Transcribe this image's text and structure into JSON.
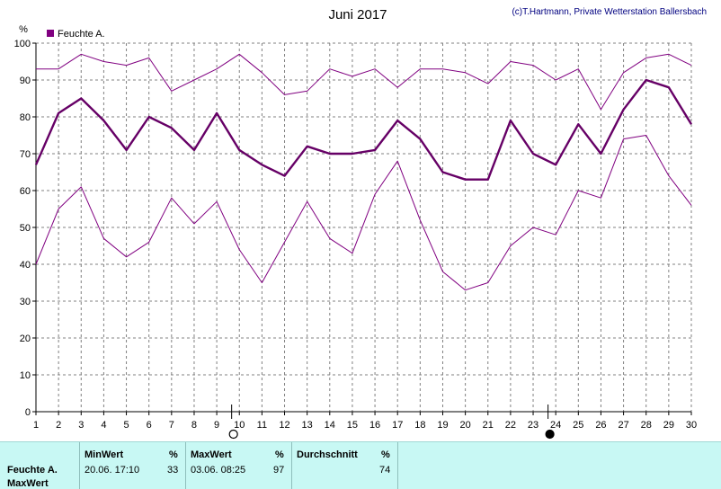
{
  "header": {
    "title": "Juni 2017",
    "credit": "(c)T.Hartmann, Private Wetterstation Ballersbach"
  },
  "chart_data": {
    "type": "line",
    "ylabel": "%",
    "ylim": [
      0,
      100
    ],
    "yticks": [
      0,
      10,
      20,
      30,
      40,
      50,
      60,
      70,
      80,
      90,
      100
    ],
    "categories": [
      "1",
      "2",
      "3",
      "4",
      "5",
      "6",
      "7",
      "8",
      "9",
      "10",
      "11",
      "12",
      "13",
      "14",
      "15",
      "16",
      "17",
      "18",
      "19",
      "20",
      "21",
      "22",
      "23",
      "24",
      "25",
      "26",
      "27",
      "28",
      "29",
      "30"
    ],
    "legend": "Feuchte A.",
    "grid": true,
    "series": [
      {
        "role": "max",
        "color": "#800080",
        "values": [
          93,
          93,
          97,
          95,
          94,
          96,
          87,
          90,
          93,
          97,
          92,
          86,
          87,
          93,
          91,
          93,
          88,
          93,
          93,
          92,
          89,
          95,
          94,
          90,
          93,
          82,
          92,
          96,
          97,
          94
        ]
      },
      {
        "role": "avg",
        "color": "#660066",
        "values": [
          67,
          81,
          85,
          79,
          71,
          80,
          77,
          71,
          81,
          71,
          67,
          64,
          72,
          70,
          70,
          71,
          79,
          74,
          65,
          63,
          63,
          79,
          70,
          67,
          78,
          70,
          82,
          90,
          88,
          78
        ]
      },
      {
        "role": "min",
        "color": "#800080",
        "values": [
          40,
          55,
          61,
          47,
          42,
          46,
          58,
          51,
          57,
          44,
          35,
          46,
          57,
          47,
          43,
          59,
          68,
          52,
          38,
          33,
          35,
          45,
          50,
          48,
          60,
          58,
          74,
          75,
          64,
          56
        ]
      }
    ],
    "markers": [
      {
        "day": 10,
        "symbol": "full-moon-icon"
      },
      {
        "day": 24,
        "symbol": "new-moon-icon"
      }
    ]
  },
  "stats": {
    "row_label": "Feuchte A.",
    "row_sublabel": "MaxWert",
    "min": {
      "header": "MinWert",
      "unit": "%",
      "datetime": "20.06.  17:10",
      "value": "33"
    },
    "max": {
      "header": "MaxWert",
      "unit": "%",
      "datetime": "03.06.  08:25",
      "value": "97"
    },
    "avg": {
      "header": "Durchschnitt",
      "unit": "%",
      "value": "74"
    }
  }
}
